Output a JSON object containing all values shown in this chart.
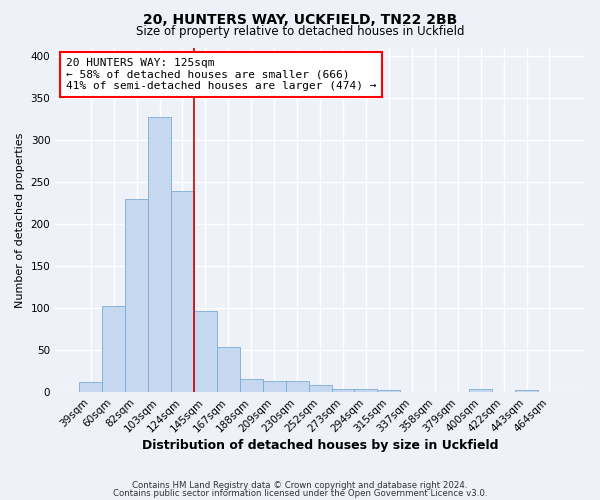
{
  "title1": "20, HUNTERS WAY, UCKFIELD, TN22 2BB",
  "title2": "Size of property relative to detached houses in Uckfield",
  "xlabel": "Distribution of detached houses by size in Uckfield",
  "ylabel": "Number of detached properties",
  "bar_color": "#c5d8f0",
  "bar_edge_color": "#7aadd4",
  "categories": [
    "39sqm",
    "60sqm",
    "82sqm",
    "103sqm",
    "124sqm",
    "145sqm",
    "167sqm",
    "188sqm",
    "209sqm",
    "230sqm",
    "252sqm",
    "273sqm",
    "294sqm",
    "315sqm",
    "337sqm",
    "358sqm",
    "379sqm",
    "400sqm",
    "422sqm",
    "443sqm",
    "464sqm"
  ],
  "values": [
    12,
    102,
    230,
    327,
    239,
    97,
    54,
    16,
    13,
    13,
    9,
    4,
    4,
    3,
    0,
    0,
    0,
    4,
    0,
    3,
    0
  ],
  "ylim": [
    0,
    410
  ],
  "yticks": [
    0,
    50,
    100,
    150,
    200,
    250,
    300,
    350,
    400
  ],
  "annotation_title": "20 HUNTERS WAY: 125sqm",
  "annotation_line1": "← 58% of detached houses are smaller (666)",
  "annotation_line2": "41% of semi-detached houses are larger (474) →",
  "bg_color": "#eef2f8",
  "grid_color": "#ffffff",
  "marker_bar_index": 3,
  "marker_color": "#cc0000",
  "footer1": "Contains HM Land Registry data © Crown copyright and database right 2024.",
  "footer2": "Contains public sector information licensed under the Open Government Licence v3.0."
}
